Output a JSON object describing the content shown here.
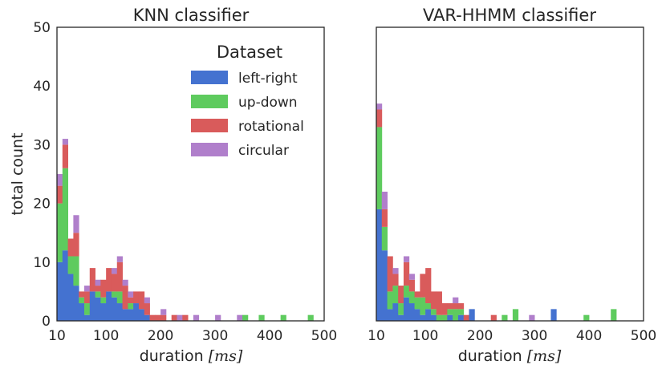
{
  "colors": {
    "left-right": "#4472d0",
    "up-down": "#5ecb5e",
    "rotational": "#d95b5b",
    "circular": "#b07fcb"
  },
  "shared_ylabel": "total count",
  "legend": {
    "title": "Dataset",
    "placement": "top-right of left panel",
    "entries": [
      "left-right",
      "up-down",
      "rotational",
      "circular"
    ]
  },
  "chart_data": [
    {
      "type": "bar",
      "stacked": true,
      "title": "KNN classifier",
      "xlabel": "duration [ms]",
      "ylabel": "total count",
      "xlim": [
        10,
        500
      ],
      "ylim": [
        0,
        50
      ],
      "xticks": [
        10,
        100,
        200,
        300,
        400,
        500
      ],
      "yticks": [
        0,
        10,
        20,
        30,
        40,
        50
      ],
      "grid": false,
      "bin_width": 10,
      "bins_start": [
        10,
        20,
        30,
        40,
        50,
        60,
        70,
        80,
        90,
        100,
        110,
        120,
        130,
        140,
        150,
        160,
        170,
        180,
        190,
        200,
        210,
        220,
        230,
        240,
        250,
        260,
        270,
        280,
        290,
        300,
        310,
        320,
        330,
        340,
        350,
        360,
        370,
        380,
        390,
        400,
        410,
        420,
        430,
        440,
        450,
        460,
        470,
        480,
        490
      ],
      "series": [
        {
          "name": "left-right",
          "values": [
            10,
            12,
            8,
            6,
            3,
            1,
            5,
            4,
            3,
            5,
            4,
            3,
            2,
            2,
            3,
            2,
            1,
            0,
            0,
            0,
            0,
            0,
            0,
            0,
            0,
            0,
            0,
            0,
            0,
            0,
            0,
            0,
            0,
            0,
            0,
            0,
            0,
            0,
            0,
            0,
            0,
            0,
            0,
            0,
            0,
            0,
            0,
            0,
            0
          ]
        },
        {
          "name": "up-down",
          "values": [
            10,
            14,
            3,
            5,
            1,
            2,
            0,
            1,
            1,
            0,
            1,
            2,
            0,
            1,
            0,
            0,
            0,
            0,
            0,
            0,
            0,
            0,
            0,
            0,
            0,
            0,
            0,
            0,
            0,
            0,
            0,
            0,
            0,
            0,
            1,
            0,
            0,
            1,
            0,
            0,
            0,
            1,
            0,
            0,
            0,
            0,
            1,
            0,
            0
          ]
        },
        {
          "name": "rotational",
          "values": [
            3,
            4,
            3,
            4,
            1,
            2,
            4,
            1,
            3,
            4,
            3,
            5,
            4,
            1,
            2,
            3,
            2,
            1,
            1,
            1,
            0,
            1,
            0,
            1,
            0,
            0,
            0,
            0,
            0,
            0,
            0,
            0,
            0,
            0,
            0,
            0,
            0,
            0,
            0,
            0,
            0,
            0,
            0,
            0,
            0,
            0,
            0,
            0,
            0
          ]
        },
        {
          "name": "circular",
          "values": [
            2,
            1,
            0,
            3,
            0,
            1,
            0,
            1,
            0,
            0,
            1,
            1,
            1,
            1,
            0,
            0,
            1,
            0,
            0,
            1,
            0,
            0,
            1,
            0,
            0,
            1,
            0,
            0,
            0,
            1,
            0,
            0,
            0,
            1,
            0,
            0,
            0,
            0,
            0,
            0,
            0,
            0,
            0,
            0,
            0,
            0,
            0,
            0,
            0
          ]
        }
      ]
    },
    {
      "type": "bar",
      "stacked": true,
      "title": "VAR-HHMM classifier",
      "xlabel": "duration [ms]",
      "xlim": [
        10,
        500
      ],
      "ylim": [
        0,
        50
      ],
      "xticks": [
        10,
        100,
        200,
        300,
        400,
        500
      ],
      "grid": false,
      "bin_width": 10,
      "bins_start": [
        10,
        20,
        30,
        40,
        50,
        60,
        70,
        80,
        90,
        100,
        110,
        120,
        130,
        140,
        150,
        160,
        170,
        180,
        190,
        200,
        210,
        220,
        230,
        240,
        250,
        260,
        270,
        280,
        290,
        300,
        310,
        320,
        330,
        340,
        350,
        360,
        370,
        380,
        390,
        400,
        410,
        420,
        430,
        440,
        450,
        460,
        470,
        480,
        490
      ],
      "series": [
        {
          "name": "left-right",
          "values": [
            19,
            12,
            2,
            3,
            1,
            4,
            3,
            2,
            1,
            2,
            1,
            0,
            0,
            1,
            0,
            1,
            0,
            2,
            0,
            0,
            0,
            0,
            0,
            0,
            0,
            0,
            0,
            0,
            0,
            0,
            0,
            0,
            2,
            0,
            0,
            0,
            0,
            0,
            0,
            0,
            0,
            0,
            0,
            0,
            0,
            0,
            0,
            0,
            0
          ]
        },
        {
          "name": "up-down",
          "values": [
            14,
            4,
            3,
            3,
            2,
            2,
            2,
            2,
            3,
            1,
            1,
            1,
            1,
            1,
            2,
            1,
            0,
            0,
            0,
            0,
            0,
            0,
            0,
            1,
            0,
            2,
            0,
            0,
            0,
            0,
            0,
            0,
            0,
            0,
            0,
            0,
            0,
            0,
            1,
            0,
            0,
            0,
            0,
            2,
            0,
            0,
            0,
            0,
            0
          ]
        },
        {
          "name": "rotational",
          "values": [
            3,
            3,
            6,
            2,
            3,
            4,
            2,
            1,
            4,
            6,
            3,
            4,
            2,
            1,
            1,
            1,
            1,
            0,
            0,
            0,
            0,
            1,
            0,
            0,
            0,
            0,
            0,
            0,
            0,
            0,
            0,
            0,
            0,
            0,
            0,
            0,
            0,
            0,
            0,
            0,
            0,
            0,
            0,
            0,
            0,
            0,
            0,
            0,
            0
          ]
        },
        {
          "name": "circular",
          "values": [
            1,
            3,
            0,
            1,
            0,
            1,
            1,
            0,
            0,
            0,
            0,
            0,
            0,
            0,
            1,
            0,
            0,
            0,
            0,
            0,
            0,
            0,
            0,
            0,
            0,
            0,
            0,
            0,
            1,
            0,
            0,
            0,
            0,
            0,
            0,
            0,
            0,
            0,
            0,
            0,
            0,
            0,
            0,
            0,
            0,
            0,
            0,
            0,
            0
          ]
        }
      ]
    }
  ]
}
